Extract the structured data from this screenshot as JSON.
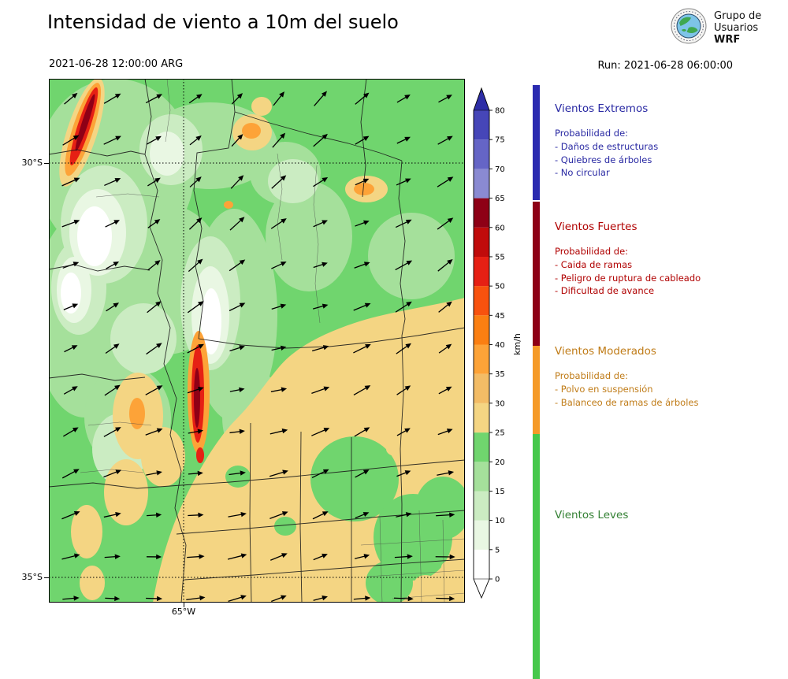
{
  "header": {
    "title": "Intensidad de viento a 10m del suelo",
    "valid_time": "2021-06-28 12:00:00 ARG",
    "run_label": "Run: 2021-06-28 06:00:00",
    "logo": {
      "lines": [
        "Grupo de",
        "Usuarios",
        "WRF"
      ]
    }
  },
  "map": {
    "lat_labels": [
      "30°S",
      "35°S"
    ],
    "lon_labels": [
      "65°W"
    ],
    "wind_flow": "arrows point toward the northeast (southwesterly flow)"
  },
  "colorbar": {
    "unit": "km/h",
    "ticks": [
      0,
      5,
      10,
      15,
      20,
      25,
      30,
      35,
      40,
      45,
      50,
      55,
      60,
      65,
      70,
      75,
      80
    ],
    "over_color": "#2d2da6",
    "under_color": "#ffffff",
    "segments": [
      {
        "from": 0,
        "to": 5,
        "color": "#ffffff"
      },
      {
        "from": 5,
        "to": 10,
        "color": "#e9f7e3"
      },
      {
        "from": 10,
        "to": 15,
        "color": "#cbecc2"
      },
      {
        "from": 15,
        "to": 20,
        "color": "#a5e09b"
      },
      {
        "from": 20,
        "to": 25,
        "color": "#70d56e"
      },
      {
        "from": 25,
        "to": 30,
        "color": "#f4d583"
      },
      {
        "from": 30,
        "to": 35,
        "color": "#f3bc66"
      },
      {
        "from": 35,
        "to": 40,
        "color": "#fda338"
      },
      {
        "from": 40,
        "to": 45,
        "color": "#fb7f12"
      },
      {
        "from": 45,
        "to": 50,
        "color": "#f8520e"
      },
      {
        "from": 50,
        "to": 55,
        "color": "#e62014"
      },
      {
        "from": 55,
        "to": 60,
        "color": "#c00b0b"
      },
      {
        "from": 60,
        "to": 65,
        "color": "#8e0016"
      },
      {
        "from": 65,
        "to": 70,
        "color": "#8a8ad2"
      },
      {
        "from": 70,
        "to": 75,
        "color": "#6565c6"
      },
      {
        "from": 75,
        "to": 80,
        "color": "#4646b8"
      }
    ]
  },
  "legend": {
    "sections": [
      {
        "title": "Vientos Extremos",
        "color": "#2929a3",
        "bar_color": "#2b2bb0",
        "prob": "Probabilidad de:",
        "items": [
          "- Daños de estructuras",
          "- Quiebres de árboles",
          "- No circular"
        ]
      },
      {
        "title": "Vientos Fuertes",
        "color": "#b00000",
        "bar_color": "#8e0016",
        "prob": "Probabilidad de:",
        "items": [
          "- Caida de ramas",
          "- Peligro de ruptura de cableado",
          "- Dificultad de avance"
        ]
      },
      {
        "title": "Vientos Moderados",
        "color": "#c07c18",
        "bar_color": "#f59a28",
        "prob": "Probabilidad de:",
        "items": [
          "- Polvo en suspensión",
          "- Balanceo de ramas de árboles"
        ]
      },
      {
        "title": "Vientos Leves",
        "color": "#338033",
        "bar_color": "#46c84b",
        "prob": "",
        "items": []
      }
    ]
  },
  "wind": {
    "rows": 13,
    "cols": 10,
    "arrow_color": "#000000"
  }
}
